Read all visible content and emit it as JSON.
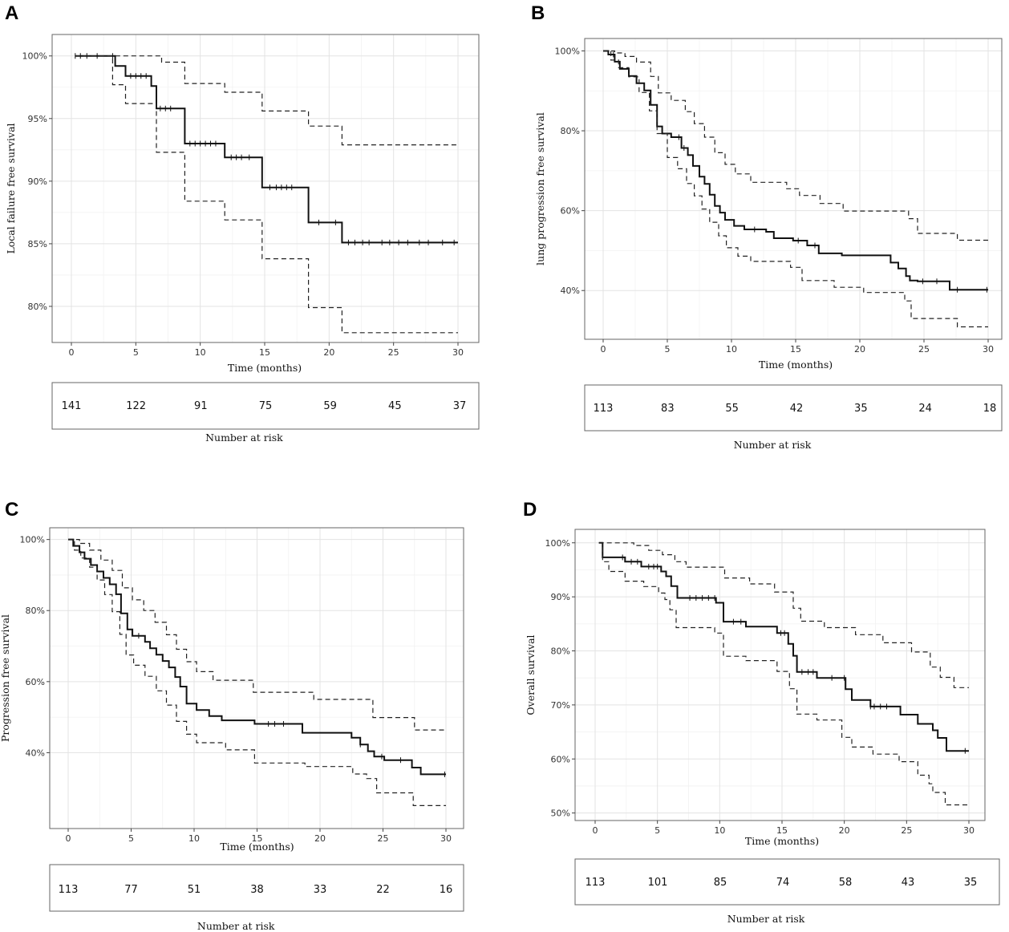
{
  "chart_data": [
    {
      "id": "A",
      "type": "line",
      "panel_label": "A",
      "xlabel": "Time (months)",
      "ylabel": "Local failure free survival",
      "xlim": [
        0,
        30
      ],
      "ylim": [
        77.5,
        101.2
      ],
      "x_ticks": [
        0,
        5,
        10,
        15,
        20,
        25,
        30
      ],
      "y_ticks": [
        80,
        85,
        90,
        95,
        100
      ],
      "y_tick_labels": [
        "80%",
        "85%",
        "90%",
        "95%",
        "100%"
      ],
      "series": [
        {
          "name": "estimate",
          "style": "solid",
          "x": [
            0.3,
            3.4,
            4.2,
            6.2,
            6.6,
            8.8,
            11.9,
            14.8,
            18.4,
            21.0,
            30
          ],
          "y": [
            100,
            99.2,
            98.4,
            97.6,
            95.8,
            93.0,
            91.9,
            89.5,
            86.7,
            85.1,
            85.1
          ]
        },
        {
          "name": "upper 95% CI",
          "style": "dashed",
          "x": [
            0.3,
            7.0,
            8.8,
            11.9,
            14.8,
            18.4,
            21.0,
            30
          ],
          "y": [
            100,
            99.5,
            97.8,
            97.1,
            95.6,
            94.4,
            92.9,
            92.9
          ]
        },
        {
          "name": "lower 95% CI",
          "style": "dashed",
          "x": [
            0.3,
            3.2,
            4.2,
            6.6,
            8.8,
            11.9,
            14.8,
            18.4,
            21.0,
            30
          ],
          "y": [
            100,
            97.7,
            96.2,
            92.3,
            88.4,
            86.9,
            83.8,
            79.9,
            77.9,
            77.9
          ]
        }
      ],
      "censor_marks": {
        "x": [
          0.3,
          0.7,
          1.2,
          2.0,
          3.2,
          4.6,
          5.0,
          5.4,
          5.8,
          6.9,
          7.3,
          7.7,
          9.2,
          9.6,
          10.0,
          10.4,
          10.8,
          11.2,
          12.4,
          12.8,
          13.2,
          13.8,
          15.4,
          15.9,
          16.3,
          16.7,
          17.1,
          19.2,
          20.5,
          21.5,
          22.0,
          22.6,
          23.1,
          24.1,
          24.7,
          25.4,
          26.1,
          27.0,
          27.7,
          28.8,
          29.7
        ],
        "series": "estimate"
      },
      "risk_table": {
        "title": "Number at risk",
        "times": [
          0,
          5,
          10,
          15,
          20,
          25,
          30
        ],
        "values": [
          "141",
          "122",
          "91",
          "75",
          "59",
          "45",
          "37"
        ]
      }
    },
    {
      "id": "B",
      "type": "line",
      "panel_label": "B",
      "xlabel": "Time (months)",
      "ylabel": "lung progression free survival",
      "xlim": [
        0,
        30
      ],
      "ylim": [
        29,
        101.5
      ],
      "x_ticks": [
        0,
        5,
        10,
        15,
        20,
        25,
        30
      ],
      "y_ticks": [
        40,
        60,
        80,
        100
      ],
      "y_tick_labels": [
        "40%",
        "60%",
        "80%",
        "100%"
      ],
      "series": [
        {
          "name": "estimate",
          "style": "solid",
          "x": [
            0,
            0.4,
            0.9,
            1.3,
            2.0,
            2.6,
            3.2,
            3.7,
            4.2,
            4.6,
            5.3,
            6.1,
            6.6,
            7.0,
            7.5,
            7.9,
            8.3,
            8.7,
            9.1,
            9.5,
            10.2,
            11.0,
            12.7,
            13.3,
            14.8,
            15.9,
            16.8,
            18.6,
            22.4,
            23.0,
            23.6,
            23.9,
            24.5,
            27.0,
            30
          ],
          "y": [
            100,
            99.1,
            97.3,
            95.5,
            93.7,
            91.9,
            90.1,
            86.5,
            81.1,
            79.3,
            78.4,
            75.7,
            73.9,
            71.2,
            68.5,
            66.7,
            64.0,
            61.2,
            59.5,
            57.7,
            56.2,
            55.3,
            54.7,
            53.1,
            52.5,
            51.3,
            49.3,
            48.8,
            47.0,
            45.5,
            43.6,
            42.5,
            42.3,
            40.2,
            40.2
          ]
        },
        {
          "name": "upper 95% CI",
          "style": "dashed",
          "x": [
            0,
            0.9,
            1.7,
            2.6,
            3.7,
            4.3,
            5.3,
            6.4,
            7.1,
            7.9,
            8.7,
            9.5,
            10.3,
            11.5,
            14.3,
            15.3,
            16.9,
            18.7,
            23.8,
            24.5,
            27.6,
            30
          ],
          "y": [
            100,
            99.5,
            98.6,
            97.2,
            93.6,
            89.5,
            87.6,
            84.8,
            81.8,
            78.4,
            74.5,
            71.6,
            69.2,
            67.1,
            65.5,
            63.8,
            61.8,
            59.9,
            58.0,
            54.3,
            52.6,
            52.6
          ]
        },
        {
          "name": "lower 95% CI",
          "style": "dashed",
          "x": [
            0,
            0.6,
            1.2,
            2.0,
            2.8,
            3.6,
            4.2,
            5.0,
            5.8,
            6.5,
            7.1,
            7.7,
            8.3,
            9.0,
            9.6,
            10.5,
            11.5,
            14.6,
            15.5,
            18.0,
            20.3,
            23.5,
            24.0,
            27.6,
            30
          ],
          "y": [
            100,
            97.7,
            95.8,
            93.5,
            89.6,
            85.0,
            79.3,
            73.3,
            70.5,
            66.8,
            63.7,
            60.4,
            57.1,
            53.7,
            50.7,
            48.6,
            47.3,
            45.8,
            42.5,
            40.8,
            39.5,
            37.4,
            33.0,
            30.9,
            30.9
          ]
        }
      ],
      "censor_marks": {
        "x": [
          0.8,
          5.9,
          6.3,
          11.8,
          15.2,
          16.5,
          24.9,
          26.0,
          27.6,
          29.9
        ],
        "series": "estimate"
      },
      "risk_table": {
        "title": "Number at risk",
        "times": [
          0,
          5,
          10,
          15,
          20,
          25,
          30
        ],
        "values": [
          "113",
          "83",
          "55",
          "42",
          "35",
          "24",
          "18"
        ]
      }
    },
    {
      "id": "C",
      "type": "line",
      "panel_label": "C",
      "xlabel": "Time (months)",
      "ylabel": "Progression free survival",
      "xlim": [
        0,
        30
      ],
      "ylim": [
        20,
        101.5
      ],
      "x_ticks": [
        0,
        5,
        10,
        15,
        20,
        25,
        30
      ],
      "y_ticks": [
        40,
        60,
        80,
        100
      ],
      "y_tick_labels": [
        "40%",
        "60%",
        "80%",
        "100%"
      ],
      "series": [
        {
          "name": "estimate",
          "style": "solid",
          "x": [
            0,
            0.4,
            0.9,
            1.3,
            1.8,
            2.3,
            2.8,
            3.3,
            3.8,
            4.2,
            4.7,
            5.1,
            6.1,
            6.5,
            7.0,
            7.5,
            8.0,
            8.5,
            8.9,
            9.4,
            10.2,
            11.2,
            12.2,
            14.8,
            18.6,
            22.5,
            23.2,
            23.8,
            24.3,
            25.1,
            27.3,
            28.0,
            30
          ],
          "y": [
            100,
            98.2,
            96.4,
            94.6,
            92.8,
            91.0,
            89.2,
            87.4,
            84.6,
            79.2,
            74.7,
            72.9,
            71.2,
            69.4,
            67.6,
            65.8,
            64.0,
            61.3,
            58.6,
            53.8,
            52.0,
            50.3,
            49.1,
            48.1,
            45.6,
            44.2,
            42.3,
            40.4,
            38.9,
            37.9,
            35.8,
            33.9,
            33.9
          ]
        },
        {
          "name": "upper 95% CI",
          "style": "dashed",
          "x": [
            0,
            0.9,
            1.7,
            2.6,
            3.5,
            4.3,
            5.1,
            6.0,
            6.9,
            7.8,
            8.6,
            9.4,
            10.2,
            11.5,
            14.7,
            19.5,
            24.2,
            27.5,
            30
          ],
          "y": [
            100,
            98.9,
            97.0,
            94.2,
            91.3,
            86.4,
            83.0,
            80.0,
            76.7,
            73.2,
            69.1,
            65.6,
            62.8,
            60.4,
            57.0,
            55.0,
            49.9,
            46.4,
            46.4
          ]
        },
        {
          "name": "lower 95% CI",
          "style": "dashed",
          "x": [
            0,
            0.5,
            1.0,
            1.7,
            2.3,
            2.9,
            3.5,
            4.1,
            4.6,
            5.2,
            6.1,
            7.0,
            7.8,
            8.6,
            9.4,
            10.2,
            12.5,
            14.8,
            18.8,
            22.6,
            23.7,
            24.5,
            27.4,
            30
          ],
          "y": [
            100,
            97.0,
            94.8,
            92.2,
            88.6,
            84.5,
            79.7,
            73.3,
            67.5,
            64.6,
            61.5,
            57.4,
            53.4,
            48.8,
            45.2,
            42.8,
            40.8,
            37.1,
            36.1,
            34.0,
            32.7,
            28.7,
            25.1,
            25.1
          ]
        }
      ],
      "censor_marks": {
        "x": [
          5.6,
          15.9,
          16.4,
          17.1,
          23.2,
          24.9,
          26.4,
          29.9
        ],
        "series": "estimate"
      },
      "risk_table": {
        "title": "Number at risk",
        "times": [
          0,
          5,
          10,
          15,
          20,
          25,
          30
        ],
        "values": [
          "113",
          "77",
          "51",
          "38",
          "33",
          "22",
          "16"
        ]
      }
    },
    {
      "id": "D",
      "type": "line",
      "panel_label": "D",
      "xlabel": "Time (months)",
      "ylabel": "Overall survival",
      "xlim": [
        0,
        30
      ],
      "ylim": [
        49.5,
        101.3
      ],
      "x_ticks": [
        0,
        5,
        10,
        15,
        20,
        25,
        30
      ],
      "y_ticks": [
        50,
        60,
        70,
        80,
        90,
        100
      ],
      "y_tick_labels": [
        "50%",
        "60%",
        "70%",
        "80%",
        "90%",
        "100%"
      ],
      "series": [
        {
          "name": "estimate",
          "style": "solid",
          "x": [
            0.3,
            0.6,
            2.4,
            3.7,
            5.3,
            5.7,
            6.1,
            6.6,
            9.7,
            10.3,
            12.1,
            14.6,
            15.5,
            15.9,
            16.2,
            17.8,
            20.1,
            20.6,
            22.1,
            24.5,
            25.9,
            27.1,
            27.5,
            28.2,
            30
          ],
          "y": [
            100,
            97.3,
            96.5,
            95.6,
            94.7,
            93.8,
            92.0,
            89.8,
            88.9,
            85.4,
            84.5,
            83.3,
            81.3,
            79.1,
            76.1,
            75.0,
            72.9,
            70.9,
            69.7,
            68.2,
            66.5,
            65.3,
            63.9,
            61.5,
            61.5
          ]
        },
        {
          "name": "upper 95% CI",
          "style": "dashed",
          "x": [
            0.3,
            3.1,
            4.3,
            5.4,
            6.4,
            7.3,
            10.4,
            12.4,
            14.4,
            15.9,
            16.5,
            18.4,
            20.9,
            23.1,
            25.4,
            26.9,
            27.7,
            28.8,
            30
          ],
          "y": [
            100,
            99.5,
            98.6,
            97.8,
            96.5,
            95.5,
            93.5,
            92.4,
            90.9,
            87.9,
            85.5,
            84.3,
            83.0,
            81.5,
            79.8,
            77.0,
            75.1,
            73.2,
            73.2
          ]
        },
        {
          "name": "lower 95% CI",
          "style": "dashed",
          "x": [
            0.3,
            0.6,
            1.1,
            2.4,
            3.9,
            5.1,
            5.6,
            6.0,
            6.5,
            9.6,
            10.3,
            12.1,
            14.6,
            15.6,
            16.2,
            17.8,
            19.8,
            20.6,
            22.3,
            24.4,
            25.9,
            26.8,
            27.1,
            28.1,
            30
          ],
          "y": [
            100,
            96.5,
            94.7,
            92.9,
            91.9,
            90.7,
            89.5,
            87.6,
            84.3,
            83.3,
            79.0,
            78.2,
            76.2,
            73.0,
            68.3,
            67.2,
            64.0,
            62.2,
            60.9,
            59.5,
            57.0,
            55.4,
            53.8,
            51.5,
            51.5
          ]
        }
      ],
      "censor_marks": {
        "x": [
          2.2,
          2.9,
          3.4,
          4.3,
          4.7,
          5.0,
          7.6,
          8.1,
          8.6,
          9.1,
          9.6,
          11.1,
          11.7,
          14.9,
          15.2,
          16.6,
          17.1,
          17.5,
          19.0,
          20.0,
          22.1,
          22.4,
          22.9,
          23.4,
          29.7
        ],
        "series": "estimate"
      },
      "risk_table": {
        "title": "Number at risk",
        "times": [
          0,
          5,
          10,
          15,
          20,
          25,
          30
        ],
        "values": [
          "113",
          "101",
          "85",
          "74",
          "58",
          "43",
          "35"
        ]
      }
    }
  ]
}
